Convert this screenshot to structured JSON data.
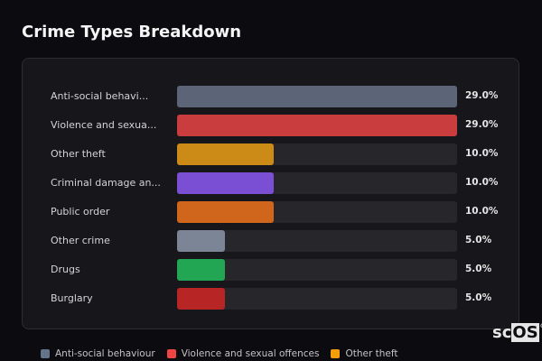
{
  "header": {
    "title": "Crime Types Breakdown"
  },
  "chart_data": {
    "type": "bar",
    "orientation": "horizontal",
    "categories": [
      "Anti-social behavi...",
      "Violence and sexua...",
      "Other theft",
      "Criminal damage an...",
      "Public order",
      "Other crime",
      "Drugs",
      "Burglary"
    ],
    "values": [
      29.0,
      29.0,
      10.0,
      10.0,
      10.0,
      5.0,
      5.0,
      5.0
    ],
    "value_labels": [
      "29.0%",
      "29.0%",
      "10.0%",
      "10.0%",
      "10.0%",
      "5.0%",
      "5.0%",
      "5.0%"
    ],
    "colors": [
      "#5b6577",
      "#c93d3f",
      "#cc8a17",
      "#7b4fd4",
      "#d0661c",
      "#7c8596",
      "#22a653",
      "#b82525"
    ],
    "xlim": [
      0,
      29
    ],
    "grid": false,
    "legend_position": "bottom",
    "legend": [
      {
        "label": "Anti-social behaviour",
        "color": "#64748b"
      },
      {
        "label": "Violence and sexual offences",
        "color": "#ef4444"
      },
      {
        "label": "Other theft",
        "color": "#f59e0b"
      }
    ]
  },
  "logo": {
    "text_a": "sc",
    "text_b": "OS",
    "mark": "®"
  }
}
